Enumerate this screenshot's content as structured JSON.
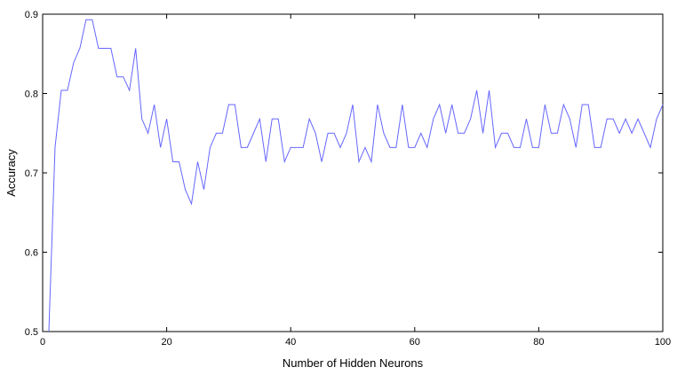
{
  "chart_data": {
    "type": "line",
    "title": "",
    "xlabel": "Number of Hidden Neurons",
    "ylabel": "Accuracy",
    "xlim": [
      0,
      100
    ],
    "ylim": [
      0.5,
      0.9
    ],
    "xticks": [
      0,
      20,
      40,
      60,
      80,
      100
    ],
    "xtick_labels": [
      "0",
      "20",
      "40",
      "60",
      "80",
      "100"
    ],
    "yticks": [
      0.5,
      0.6,
      0.7,
      0.8,
      0.9
    ],
    "ytick_labels": [
      "0.5",
      "0.6",
      "0.7",
      "0.8",
      "0.9"
    ],
    "grid": false,
    "series": [
      {
        "color": "#6666ff",
        "x": [
          1,
          2,
          3,
          4,
          5,
          6,
          7,
          8,
          9,
          10,
          11,
          12,
          13,
          14,
          15,
          16,
          17,
          18,
          19,
          20,
          21,
          22,
          23,
          24,
          25,
          26,
          27,
          28,
          29,
          30,
          31,
          32,
          33,
          34,
          35,
          36,
          37,
          38,
          39,
          40,
          41,
          42,
          43,
          44,
          45,
          46,
          47,
          48,
          49,
          50,
          51,
          52,
          53,
          54,
          55,
          56,
          57,
          58,
          59,
          60,
          61,
          62,
          63,
          64,
          65,
          66,
          67,
          68,
          69,
          70,
          71,
          72,
          73,
          74,
          75,
          76,
          77,
          78,
          79,
          80,
          81,
          82,
          83,
          84,
          85,
          86,
          87,
          88,
          89,
          90,
          91,
          92,
          93,
          94,
          95,
          96,
          97,
          98,
          99,
          100
        ],
        "y": [
          0.5,
          0.732,
          0.804,
          0.804,
          0.839,
          0.857,
          0.893,
          0.893,
          0.857,
          0.857,
          0.857,
          0.821,
          0.821,
          0.804,
          0.857,
          0.768,
          0.75,
          0.786,
          0.732,
          0.768,
          0.714,
          0.714,
          0.679,
          0.661,
          0.714,
          0.679,
          0.732,
          0.75,
          0.75,
          0.786,
          0.786,
          0.732,
          0.732,
          0.75,
          0.768,
          0.714,
          0.768,
          0.768,
          0.714,
          0.732,
          0.732,
          0.732,
          0.768,
          0.75,
          0.714,
          0.75,
          0.75,
          0.732,
          0.75,
          0.786,
          0.714,
          0.732,
          0.714,
          0.786,
          0.75,
          0.732,
          0.732,
          0.786,
          0.732,
          0.732,
          0.75,
          0.732,
          0.768,
          0.786,
          0.75,
          0.786,
          0.75,
          0.75,
          0.768,
          0.804,
          0.75,
          0.804,
          0.732,
          0.75,
          0.75,
          0.732,
          0.732,
          0.768,
          0.732,
          0.732,
          0.786,
          0.75,
          0.75,
          0.786,
          0.768,
          0.732,
          0.786,
          0.786,
          0.732,
          0.732,
          0.768,
          0.768,
          0.75,
          0.768,
          0.75,
          0.768,
          0.75,
          0.732,
          0.768,
          0.786
        ]
      }
    ]
  }
}
